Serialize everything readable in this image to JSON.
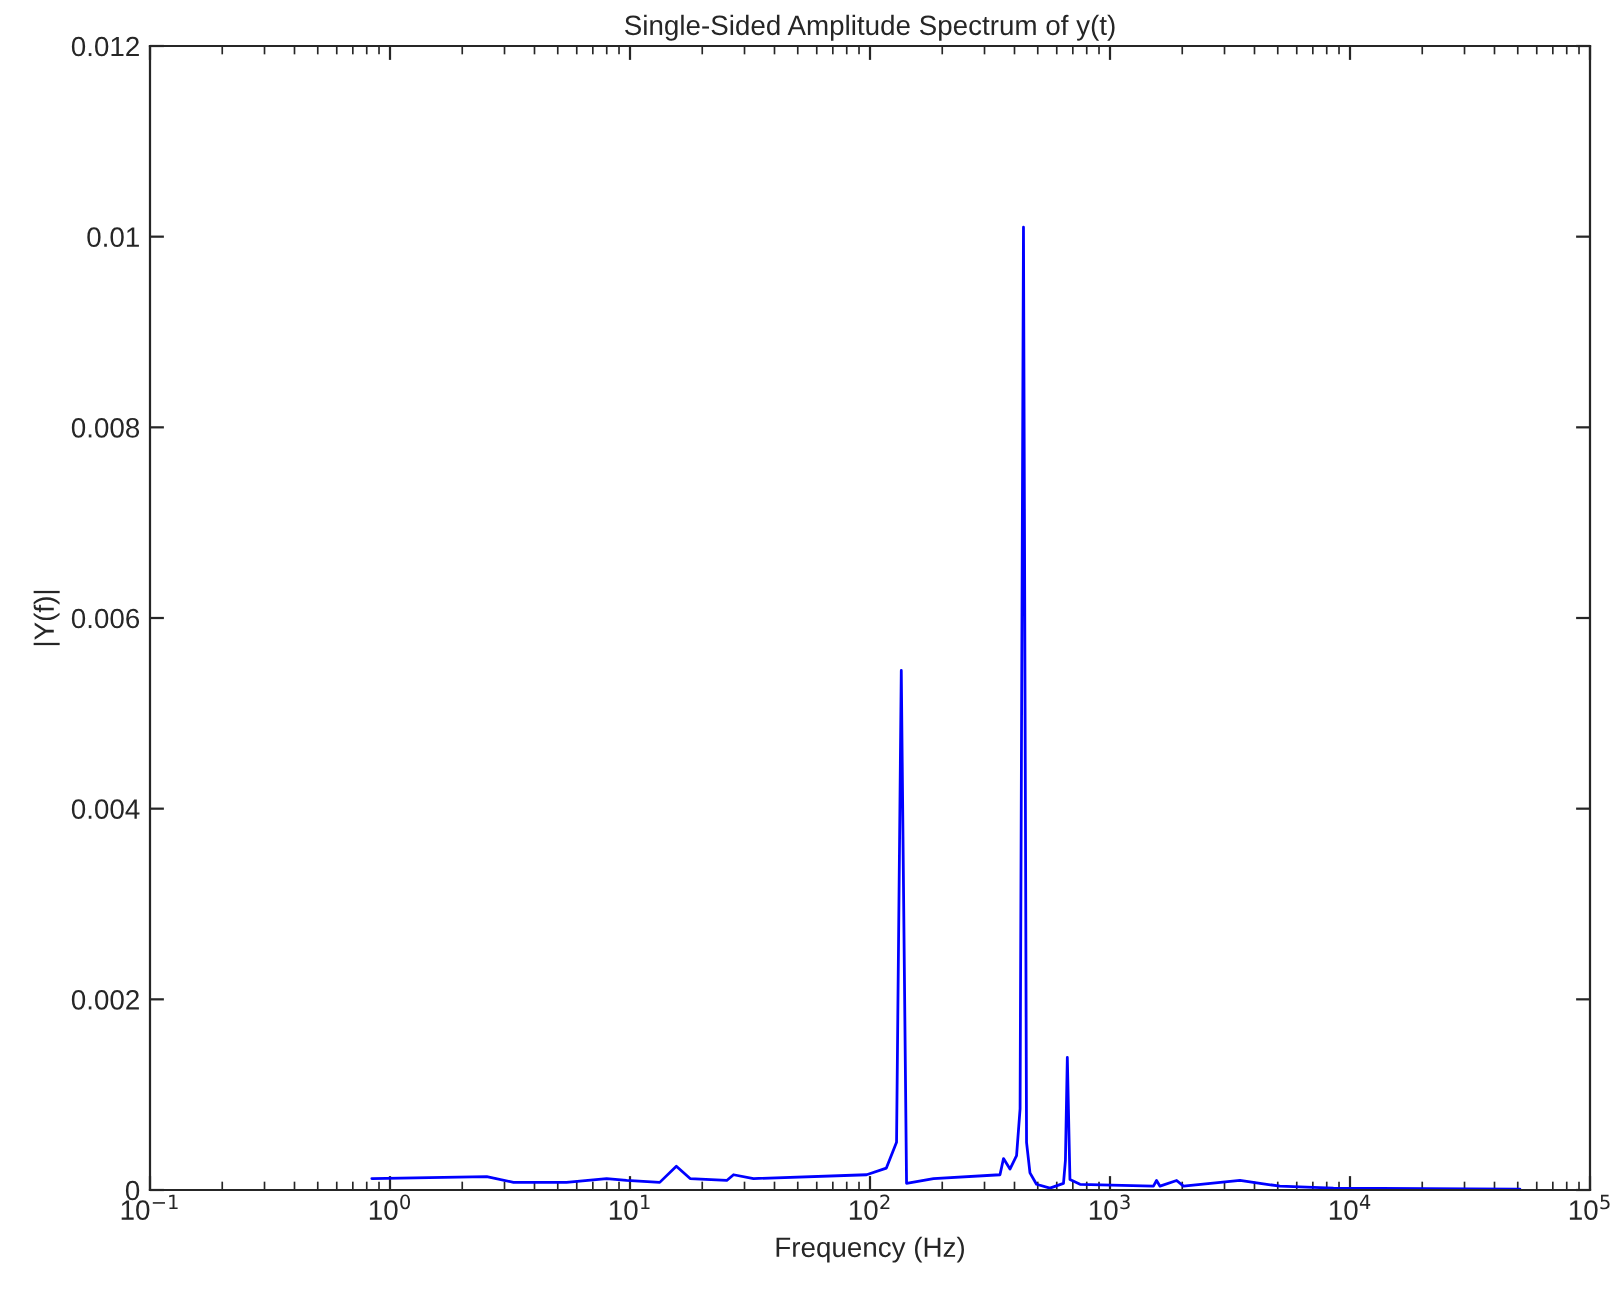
{
  "chart_data": {
    "type": "line",
    "title": "Single-Sided Amplitude Spectrum of y(t)",
    "xlabel": "Frequency (Hz)",
    "ylabel": "|Y(f)|",
    "log": "x",
    "grid": false,
    "xlim": [
      0.1,
      100000
    ],
    "ylim": [
      0,
      0.012
    ],
    "xticks": [
      {
        "value": 0.1,
        "label": "10$^{−1}$"
      },
      {
        "value": 1,
        "label": "10$^{0}$"
      },
      {
        "value": 10,
        "label": "10$^{1}$"
      },
      {
        "value": 100,
        "label": "10$^{2}$"
      },
      {
        "value": 1000,
        "label": "10$^{3}$"
      },
      {
        "value": 10000,
        "label": "10$^{4}$"
      },
      {
        "value": 100000,
        "label": "10$^{5}$"
      }
    ],
    "yticks": [
      0,
      0.002,
      0.004,
      0.006,
      0.008,
      0.01,
      0.012
    ],
    "series": [
      {
        "color": "#0000ff",
        "x": [
          0.84,
          2.53,
          3.27,
          5.44,
          7.99,
          9.68,
          13.3,
          15.6,
          17.8,
          25.3,
          27.0,
          32.7,
          96.8,
          117,
          129,
          135,
          142,
          184,
          348,
          360,
          383,
          408,
          422,
          436,
          449,
          464,
          494,
          562,
          640,
          652,
          664,
          681,
          750,
          1517,
          1563,
          1616,
          1895,
          2024,
          3480,
          4217,
          5109,
          8530,
          51050
        ],
        "values": [
          0.00012,
          0.00014,
          8e-05,
          8e-05,
          0.00012,
          0.0001,
          8e-05,
          0.00025,
          0.00012,
          0.0001,
          0.00016,
          0.00012,
          0.00016,
          0.00023,
          0.0005,
          0.00545,
          7e-05,
          0.00012,
          0.00016,
          0.00033,
          0.00022,
          0.00036,
          0.00085,
          0.0101,
          0.0005,
          0.00018,
          6e-05,
          2e-05,
          7e-05,
          0.00031,
          0.00139,
          0.00011,
          6e-05,
          4e-05,
          0.0001,
          4e-05,
          0.0001,
          4e-05,
          0.0001,
          7e-05,
          4e-05,
          2e-05,
          1e-05
        ]
      }
    ]
  }
}
